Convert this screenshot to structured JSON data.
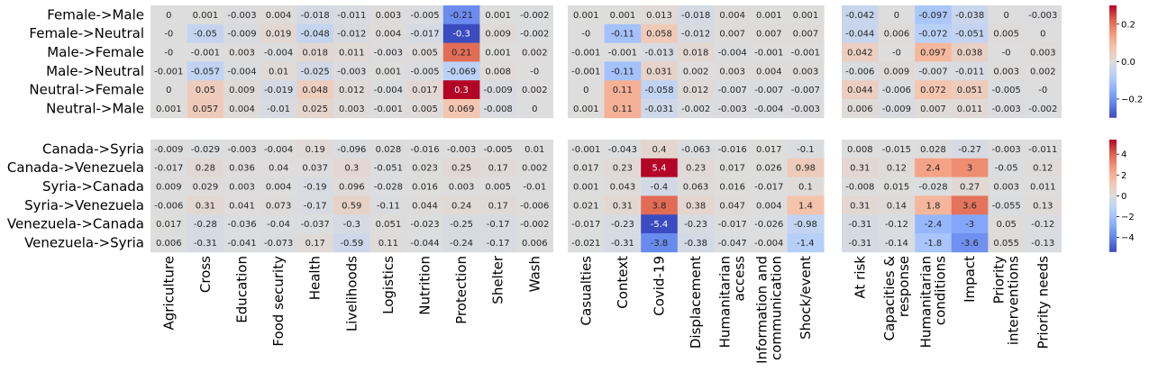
{
  "chart_data": [
    {
      "type": "heatmap",
      "name": "gender-transfer",
      "rows": [
        "Female->Male",
        "Female->Neutral",
        "Male->Female",
        "Male->Neutral",
        "Neutral->Female",
        "Neutral->Male"
      ],
      "columns_groups": [
        [
          "Agriculture",
          "Cross",
          "Education",
          "Food security",
          "Health",
          "Livelihoods",
          "Logistics",
          "Nutrition",
          "Protection",
          "Shelter",
          "Wash"
        ],
        [
          "Casualties",
          "Context",
          "Covid-19",
          "Displacement",
          "Humanitarian\naccess",
          "Information and\ncommunication",
          "Shock/event"
        ],
        [
          "At risk",
          "Capacities &\nresponse",
          "Humanitarian\nconditions",
          "Impact",
          "Priority\ninterventions",
          "Priority needs"
        ]
      ],
      "values": [
        [
          [
            0,
            0.001,
            -0.003,
            0.004,
            -0.018,
            -0.011,
            0.003,
            -0.005,
            -0.21,
            0.001,
            -0.002
          ],
          [
            0,
            -0.05,
            -0.009,
            0.019,
            -0.048,
            -0.012,
            0.004,
            -0.017,
            -0.3,
            0.009,
            -0.002
          ],
          [
            0,
            -0.001,
            0.003,
            -0.004,
            0.018,
            0.011,
            -0.003,
            0.005,
            0.21,
            0.001,
            0.002
          ],
          [
            -0.001,
            -0.057,
            -0.004,
            0.01,
            -0.025,
            -0.003,
            0.001,
            -0.005,
            -0.069,
            0.008,
            0
          ],
          [
            0,
            0.05,
            0.009,
            -0.019,
            0.048,
            0.012,
            -0.004,
            0.017,
            0.3,
            -0.009,
            0.002
          ],
          [
            0.001,
            0.057,
            0.004,
            -0.01,
            0.025,
            0.003,
            -0.001,
            0.005,
            0.069,
            -0.008,
            0
          ]
        ],
        [
          [
            0.001,
            0.001,
            0.013,
            -0.018,
            0.004,
            0.001,
            0.001
          ],
          [
            0,
            -0.11,
            0.058,
            -0.012,
            0.007,
            0.007,
            0.007
          ],
          [
            -0.001,
            -0.001,
            -0.013,
            0.018,
            -0.004,
            -0.001,
            -0.001
          ],
          [
            -0.001,
            -0.11,
            0.031,
            0.002,
            0.003,
            0.004,
            0.003
          ],
          [
            0,
            0.11,
            -0.058,
            0.012,
            -0.007,
            -0.007,
            -0.007
          ],
          [
            0.001,
            0.11,
            -0.031,
            -0.002,
            -0.003,
            -0.004,
            -0.003
          ]
        ],
        [
          [
            -0.042,
            0,
            -0.097,
            -0.038,
            0,
            -0.003
          ],
          [
            -0.044,
            0.006,
            -0.072,
            -0.051,
            0.005,
            0
          ],
          [
            0.042,
            0,
            0.097,
            0.038,
            0,
            0.003
          ],
          [
            -0.006,
            0.009,
            -0.007,
            -0.011,
            0.003,
            0.002
          ],
          [
            0.044,
            -0.006,
            0.072,
            0.051,
            -0.005,
            0
          ],
          [
            0.006,
            -0.009,
            0.007,
            0.011,
            -0.003,
            -0.002
          ]
        ]
      ],
      "labels": [
        [
          [
            "0",
            "0.001",
            "-0.003",
            "0.004",
            "-0.018",
            "-0.011",
            "0.003",
            "-0.005",
            "-0.21",
            "0.001",
            "-0.002"
          ],
          [
            "-0",
            "-0.05",
            "-0.009",
            "0.019",
            "-0.048",
            "-0.012",
            "0.004",
            "-0.017",
            "-0.3",
            "0.009",
            "-0.002"
          ],
          [
            "-0",
            "-0.001",
            "0.003",
            "-0.004",
            "0.018",
            "0.011",
            "-0.003",
            "0.005",
            "0.21",
            "0.001",
            "0.002"
          ],
          [
            "-0.001",
            "-0.057",
            "-0.004",
            "0.01",
            "-0.025",
            "-0.003",
            "0.001",
            "-0.005",
            "-0.069",
            "0.008",
            "-0"
          ],
          [
            "0",
            "0.05",
            "0.009",
            "-0.019",
            "0.048",
            "0.012",
            "-0.004",
            "0.017",
            "0.3",
            "-0.009",
            "0.002"
          ],
          [
            "0.001",
            "0.057",
            "0.004",
            "-0.01",
            "0.025",
            "0.003",
            "-0.001",
            "0.005",
            "0.069",
            "-0.008",
            "0"
          ]
        ],
        [
          [
            "0.001",
            "0.001",
            "0.013",
            "-0.018",
            "0.004",
            "0.001",
            "0.001"
          ],
          [
            "-0",
            "-0.11",
            "0.058",
            "-0.012",
            "0.007",
            "0.007",
            "0.007"
          ],
          [
            "-0.001",
            "-0.001",
            "-0.013",
            "0.018",
            "-0.004",
            "-0.001",
            "-0.001"
          ],
          [
            "-0.001",
            "-0.11",
            "0.031",
            "0.002",
            "0.003",
            "0.004",
            "0.003"
          ],
          [
            "0",
            "0.11",
            "-0.058",
            "0.012",
            "-0.007",
            "-0.007",
            "-0.007"
          ],
          [
            "0.001",
            "0.11",
            "-0.031",
            "-0.002",
            "-0.003",
            "-0.004",
            "-0.003"
          ]
        ],
        [
          [
            "-0.042",
            "0",
            "-0.097",
            "-0.038",
            "0",
            "-0.003"
          ],
          [
            "-0.044",
            "0.006",
            "-0.072",
            "-0.051",
            "0.005",
            "0"
          ],
          [
            "0.042",
            "-0",
            "0.097",
            "0.038",
            "-0",
            "0.003"
          ],
          [
            "-0.006",
            "0.009",
            "-0.007",
            "-0.011",
            "0.003",
            "0.002"
          ],
          [
            "0.044",
            "-0.006",
            "0.072",
            "0.051",
            "-0.005",
            "-0"
          ],
          [
            "0.006",
            "-0.009",
            "0.007",
            "0.011",
            "-0.003",
            "-0.002"
          ]
        ]
      ],
      "vmin": -0.3,
      "vmax": 0.3,
      "colorbar_ticks": [
        0.2,
        0,
        -0.2
      ],
      "colorbar_tick_labels": [
        "0.2",
        "0.0",
        "−0.2"
      ],
      "colormap": "coolwarm"
    },
    {
      "type": "heatmap",
      "name": "country-transfer",
      "rows": [
        "Canada->Syria",
        "Canada->Venezuela",
        "Syria->Canada",
        "Syria->Venezuela",
        "Venezuela->Canada",
        "Venezuela->Syria"
      ],
      "columns_groups": [
        [
          "Agriculture",
          "Cross",
          "Education",
          "Food security",
          "Health",
          "Livelihoods",
          "Logistics",
          "Nutrition",
          "Protection",
          "Shelter",
          "Wash"
        ],
        [
          "Casualties",
          "Context",
          "Covid-19",
          "Displacement",
          "Humanitarian\naccess",
          "Information and\ncommunication",
          "Shock/event"
        ],
        [
          "At risk",
          "Capacities &\nresponse",
          "Humanitarian\nconditions",
          "Impact",
          "Priority\ninterventions",
          "Priority needs"
        ]
      ],
      "values": [
        [
          [
            -0.009,
            -0.029,
            -0.003,
            -0.004,
            0.19,
            -0.096,
            0.028,
            -0.016,
            -0.003,
            -0.005,
            0.01
          ],
          [
            -0.017,
            0.28,
            0.036,
            0.04,
            0.037,
            0.3,
            -0.051,
            0.023,
            0.25,
            0.17,
            0.002
          ],
          [
            0.009,
            0.029,
            0.003,
            0.004,
            -0.19,
            0.096,
            -0.028,
            0.016,
            0.003,
            0.005,
            -0.01
          ],
          [
            -0.006,
            0.31,
            0.041,
            0.073,
            -0.17,
            0.59,
            -0.11,
            0.044,
            0.24,
            0.17,
            -0.006
          ],
          [
            0.017,
            -0.28,
            -0.036,
            -0.04,
            -0.037,
            -0.3,
            0.051,
            -0.023,
            -0.25,
            -0.17,
            -0.002
          ],
          [
            0.006,
            -0.31,
            -0.041,
            -0.073,
            0.17,
            -0.59,
            0.11,
            -0.044,
            -0.24,
            -0.17,
            0.006
          ]
        ],
        [
          [
            -0.001,
            -0.043,
            0.4,
            -0.063,
            -0.016,
            0.017,
            -0.1
          ],
          [
            0.017,
            0.23,
            5.4,
            0.23,
            0.017,
            0.026,
            0.98
          ],
          [
            0.001,
            0.043,
            -0.4,
            0.063,
            0.016,
            -0.017,
            0.1
          ],
          [
            0.021,
            0.31,
            3.8,
            0.38,
            0.047,
            0.004,
            1.4
          ],
          [
            -0.017,
            -0.23,
            -5.4,
            -0.23,
            -0.017,
            -0.026,
            -0.98
          ],
          [
            -0.021,
            -0.31,
            -3.8,
            -0.38,
            -0.047,
            -0.004,
            -1.4
          ]
        ],
        [
          [
            0.008,
            -0.015,
            0.028,
            -0.27,
            -0.003,
            -0.011
          ],
          [
            0.31,
            0.12,
            2.4,
            3,
            -0.05,
            0.12
          ],
          [
            -0.008,
            0.015,
            -0.028,
            0.27,
            0.003,
            0.011
          ],
          [
            0.31,
            0.14,
            1.8,
            3.6,
            -0.055,
            0.13
          ],
          [
            -0.31,
            -0.12,
            -2.4,
            -3,
            0.05,
            -0.12
          ],
          [
            -0.31,
            -0.14,
            -1.8,
            -3.6,
            0.055,
            -0.13
          ]
        ]
      ],
      "labels": [
        [
          [
            "-0.009",
            "-0.029",
            "-0.003",
            "-0.004",
            "0.19",
            "-0.096",
            "0.028",
            "-0.016",
            "-0.003",
            "-0.005",
            "0.01"
          ],
          [
            "-0.017",
            "0.28",
            "0.036",
            "0.04",
            "0.037",
            "0.3",
            "-0.051",
            "0.023",
            "0.25",
            "0.17",
            "0.002"
          ],
          [
            "0.009",
            "0.029",
            "0.003",
            "0.004",
            "-0.19",
            "0.096",
            "-0.028",
            "0.016",
            "0.003",
            "0.005",
            "-0.01"
          ],
          [
            "-0.006",
            "0.31",
            "0.041",
            "0.073",
            "-0.17",
            "0.59",
            "-0.11",
            "0.044",
            "0.24",
            "0.17",
            "-0.006"
          ],
          [
            "0.017",
            "-0.28",
            "-0.036",
            "-0.04",
            "-0.037",
            "-0.3",
            "0.051",
            "-0.023",
            "-0.25",
            "-0.17",
            "-0.002"
          ],
          [
            "0.006",
            "-0.31",
            "-0.041",
            "-0.073",
            "0.17",
            "-0.59",
            "0.11",
            "-0.044",
            "-0.24",
            "-0.17",
            "0.006"
          ]
        ],
        [
          [
            "-0.001",
            "-0.043",
            "0.4",
            "-0.063",
            "-0.016",
            "0.017",
            "-0.1"
          ],
          [
            "0.017",
            "0.23",
            "5.4",
            "0.23",
            "0.017",
            "0.026",
            "0.98"
          ],
          [
            "0.001",
            "0.043",
            "-0.4",
            "0.063",
            "0.016",
            "-0.017",
            "0.1"
          ],
          [
            "0.021",
            "0.31",
            "3.8",
            "0.38",
            "0.047",
            "0.004",
            "1.4"
          ],
          [
            "-0.017",
            "-0.23",
            "-5.4",
            "-0.23",
            "-0.017",
            "-0.026",
            "-0.98"
          ],
          [
            "-0.021",
            "-0.31",
            "-3.8",
            "-0.38",
            "-0.047",
            "-0.004",
            "-1.4"
          ]
        ],
        [
          [
            "0.008",
            "-0.015",
            "0.028",
            "-0.27",
            "-0.003",
            "-0.011"
          ],
          [
            "0.31",
            "0.12",
            "2.4",
            "3",
            "-0.05",
            "0.12"
          ],
          [
            "-0.008",
            "0.015",
            "-0.028",
            "0.27",
            "0.003",
            "0.011"
          ],
          [
            "0.31",
            "0.14",
            "1.8",
            "3.6",
            "-0.055",
            "0.13"
          ],
          [
            "-0.31",
            "-0.12",
            "-2.4",
            "-3",
            "0.05",
            "-0.12"
          ],
          [
            "-0.31",
            "-0.14",
            "-1.8",
            "-3.6",
            "0.055",
            "-0.13"
          ]
        ]
      ],
      "vmin": -5.4,
      "vmax": 5.4,
      "colorbar_ticks": [
        4,
        2,
        0,
        -2,
        -4
      ],
      "colorbar_tick_labels": [
        "4",
        "2",
        "0",
        "−2",
        "−4"
      ],
      "colormap": "coolwarm"
    }
  ]
}
